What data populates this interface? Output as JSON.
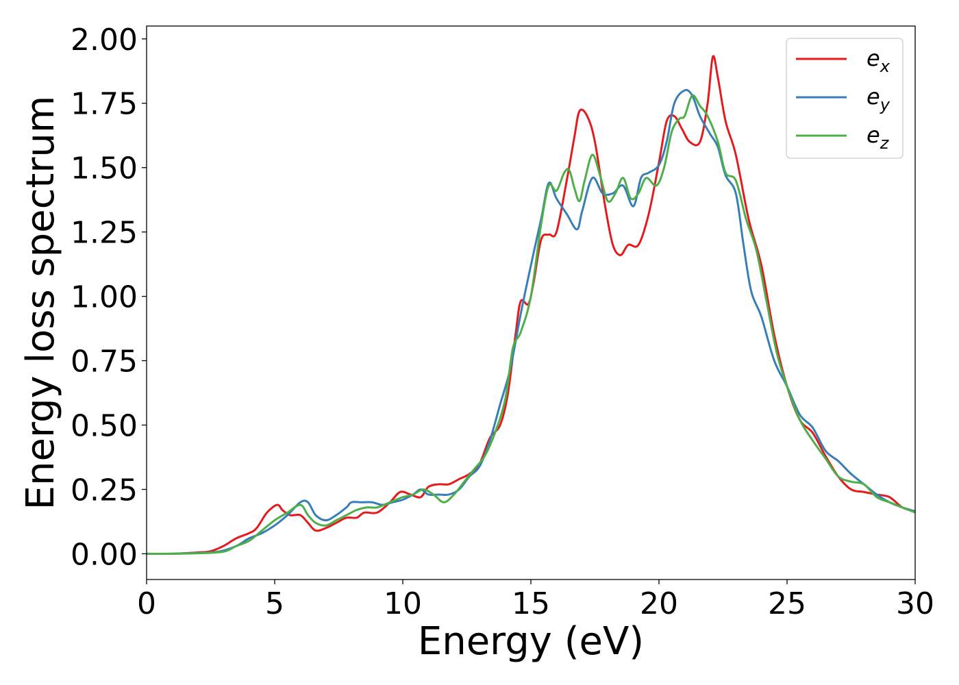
{
  "chart_data": {
    "type": "line",
    "xlabel": "Energy (eV)",
    "ylabel": "Energy loss spectrum",
    "xlim": [
      0,
      30
    ],
    "ylim": [
      -0.1,
      2.05
    ],
    "xticks": [
      0,
      5,
      10,
      15,
      20,
      25,
      30
    ],
    "yticks": [
      0.0,
      0.25,
      0.5,
      0.75,
      1.0,
      1.25,
      1.5,
      1.75,
      2.0
    ],
    "ytick_labels": [
      "0.00",
      "0.25",
      "0.50",
      "0.75",
      "1.00",
      "1.25",
      "1.50",
      "1.75",
      "2.00"
    ],
    "grid": false,
    "legend_position": "top-right",
    "series": [
      {
        "name": "e_x",
        "base": "e",
        "sub": "x",
        "color": "#e41a1c",
        "points": [
          [
            0,
            0
          ],
          [
            1,
            0
          ],
          [
            2,
            0.005
          ],
          [
            2.5,
            0.01
          ],
          [
            3,
            0.03
          ],
          [
            3.5,
            0.06
          ],
          [
            4,
            0.08
          ],
          [
            4.3,
            0.1
          ],
          [
            4.7,
            0.16
          ],
          [
            5.1,
            0.19
          ],
          [
            5.3,
            0.17
          ],
          [
            5.6,
            0.15
          ],
          [
            6,
            0.15
          ],
          [
            6.3,
            0.12
          ],
          [
            6.6,
            0.09
          ],
          [
            7,
            0.1
          ],
          [
            7.4,
            0.12
          ],
          [
            7.8,
            0.14
          ],
          [
            8.2,
            0.14
          ],
          [
            8.5,
            0.16
          ],
          [
            9,
            0.16
          ],
          [
            9.5,
            0.2
          ],
          [
            9.9,
            0.24
          ],
          [
            10.3,
            0.23
          ],
          [
            10.7,
            0.22
          ],
          [
            11,
            0.26
          ],
          [
            11.4,
            0.27
          ],
          [
            11.8,
            0.27
          ],
          [
            12.2,
            0.29
          ],
          [
            12.6,
            0.31
          ],
          [
            13,
            0.35
          ],
          [
            13.4,
            0.45
          ],
          [
            13.8,
            0.5
          ],
          [
            14.1,
            0.62
          ],
          [
            14.4,
            0.85
          ],
          [
            14.6,
            0.98
          ],
          [
            14.9,
            0.97
          ],
          [
            15.1,
            1.05
          ],
          [
            15.4,
            1.22
          ],
          [
            15.7,
            1.24
          ],
          [
            16,
            1.25
          ],
          [
            16.4,
            1.45
          ],
          [
            16.7,
            1.62
          ],
          [
            16.9,
            1.72
          ],
          [
            17.2,
            1.7
          ],
          [
            17.5,
            1.6
          ],
          [
            17.9,
            1.35
          ],
          [
            18.2,
            1.2
          ],
          [
            18.5,
            1.16
          ],
          [
            18.8,
            1.2
          ],
          [
            19.2,
            1.2
          ],
          [
            19.6,
            1.32
          ],
          [
            20,
            1.52
          ],
          [
            20.3,
            1.68
          ],
          [
            20.6,
            1.7
          ],
          [
            20.9,
            1.65
          ],
          [
            21.2,
            1.6
          ],
          [
            21.6,
            1.6
          ],
          [
            21.9,
            1.75
          ],
          [
            22.1,
            1.93
          ],
          [
            22.3,
            1.85
          ],
          [
            22.6,
            1.68
          ],
          [
            23,
            1.55
          ],
          [
            23.5,
            1.3
          ],
          [
            24,
            1.12
          ],
          [
            24.5,
            0.85
          ],
          [
            25,
            0.65
          ],
          [
            25.5,
            0.52
          ],
          [
            26,
            0.47
          ],
          [
            26.5,
            0.38
          ],
          [
            27,
            0.3
          ],
          [
            27.5,
            0.25
          ],
          [
            28,
            0.24
          ],
          [
            28.5,
            0.23
          ],
          [
            29,
            0.22
          ],
          [
            29.5,
            0.18
          ],
          [
            30,
            0.165
          ]
        ]
      },
      {
        "name": "e_y",
        "base": "e",
        "sub": "y",
        "color": "#377eb8",
        "points": [
          [
            0,
            0
          ],
          [
            1,
            0
          ],
          [
            2,
            0.003
          ],
          [
            2.8,
            0.008
          ],
          [
            3.5,
            0.03
          ],
          [
            4,
            0.06
          ],
          [
            4.5,
            0.08
          ],
          [
            5,
            0.11
          ],
          [
            5.5,
            0.15
          ],
          [
            6,
            0.2
          ],
          [
            6.3,
            0.2
          ],
          [
            6.6,
            0.15
          ],
          [
            7,
            0.13
          ],
          [
            7.4,
            0.15
          ],
          [
            7.8,
            0.18
          ],
          [
            8,
            0.2
          ],
          [
            8.4,
            0.2
          ],
          [
            8.8,
            0.2
          ],
          [
            9.2,
            0.19
          ],
          [
            9.6,
            0.2
          ],
          [
            10,
            0.21
          ],
          [
            10.4,
            0.23
          ],
          [
            10.7,
            0.25
          ],
          [
            11,
            0.23
          ],
          [
            11.4,
            0.23
          ],
          [
            11.8,
            0.23
          ],
          [
            12.2,
            0.25
          ],
          [
            12.6,
            0.3
          ],
          [
            13,
            0.34
          ],
          [
            13.4,
            0.44
          ],
          [
            13.8,
            0.58
          ],
          [
            14.2,
            0.72
          ],
          [
            14.6,
            0.93
          ],
          [
            15,
            1.12
          ],
          [
            15.4,
            1.3
          ],
          [
            15.7,
            1.44
          ],
          [
            16,
            1.38
          ],
          [
            16.4,
            1.32
          ],
          [
            16.8,
            1.26
          ],
          [
            17,
            1.33
          ],
          [
            17.4,
            1.46
          ],
          [
            17.8,
            1.4
          ],
          [
            18.2,
            1.4
          ],
          [
            18.6,
            1.43
          ],
          [
            19,
            1.35
          ],
          [
            19.3,
            1.46
          ],
          [
            19.6,
            1.48
          ],
          [
            20,
            1.51
          ],
          [
            20.3,
            1.6
          ],
          [
            20.6,
            1.75
          ],
          [
            21,
            1.8
          ],
          [
            21.3,
            1.78
          ],
          [
            21.6,
            1.7
          ],
          [
            22,
            1.63
          ],
          [
            22.3,
            1.58
          ],
          [
            22.6,
            1.47
          ],
          [
            23,
            1.4
          ],
          [
            23.3,
            1.2
          ],
          [
            23.6,
            1.02
          ],
          [
            24,
            0.92
          ],
          [
            24.5,
            0.75
          ],
          [
            25,
            0.65
          ],
          [
            25.5,
            0.54
          ],
          [
            26,
            0.49
          ],
          [
            26.5,
            0.4
          ],
          [
            27,
            0.36
          ],
          [
            27.5,
            0.31
          ],
          [
            28,
            0.27
          ],
          [
            28.5,
            0.23
          ],
          [
            29,
            0.2
          ],
          [
            29.5,
            0.18
          ],
          [
            30,
            0.165
          ]
        ]
      },
      {
        "name": "e_z",
        "base": "e",
        "sub": "z",
        "color": "#4daf4a",
        "points": [
          [
            0,
            0
          ],
          [
            1,
            0
          ],
          [
            2,
            0.002
          ],
          [
            3,
            0.008
          ],
          [
            3.5,
            0.03
          ],
          [
            4,
            0.05
          ],
          [
            4.5,
            0.09
          ],
          [
            5,
            0.13
          ],
          [
            5.5,
            0.16
          ],
          [
            6,
            0.19
          ],
          [
            6.3,
            0.15
          ],
          [
            6.6,
            0.12
          ],
          [
            7,
            0.11
          ],
          [
            7.4,
            0.13
          ],
          [
            7.8,
            0.15
          ],
          [
            8.2,
            0.17
          ],
          [
            8.6,
            0.18
          ],
          [
            9,
            0.18
          ],
          [
            9.5,
            0.2
          ],
          [
            10,
            0.22
          ],
          [
            10.4,
            0.23
          ],
          [
            10.8,
            0.25
          ],
          [
            11.2,
            0.23
          ],
          [
            11.6,
            0.2
          ],
          [
            12,
            0.23
          ],
          [
            12.4,
            0.28
          ],
          [
            12.8,
            0.33
          ],
          [
            13.2,
            0.38
          ],
          [
            13.6,
            0.47
          ],
          [
            14,
            0.6
          ],
          [
            14.3,
            0.8
          ],
          [
            14.6,
            0.86
          ],
          [
            15,
            1
          ],
          [
            15.4,
            1.28
          ],
          [
            15.7,
            1.43
          ],
          [
            16,
            1.41
          ],
          [
            16.3,
            1.48
          ],
          [
            16.5,
            1.49
          ],
          [
            16.7,
            1.42
          ],
          [
            16.9,
            1.37
          ],
          [
            17.1,
            1.45
          ],
          [
            17.4,
            1.55
          ],
          [
            17.7,
            1.47
          ],
          [
            18,
            1.37
          ],
          [
            18.3,
            1.4
          ],
          [
            18.6,
            1.46
          ],
          [
            18.9,
            1.38
          ],
          [
            19.2,
            1.4
          ],
          [
            19.5,
            1.46
          ],
          [
            19.9,
            1.43
          ],
          [
            20.2,
            1.5
          ],
          [
            20.5,
            1.64
          ],
          [
            20.8,
            1.69
          ],
          [
            21,
            1.7
          ],
          [
            21.3,
            1.78
          ],
          [
            21.6,
            1.74
          ],
          [
            21.9,
            1.7
          ],
          [
            22.3,
            1.6
          ],
          [
            22.6,
            1.48
          ],
          [
            23,
            1.45
          ],
          [
            23.4,
            1.3
          ],
          [
            23.8,
            1.18
          ],
          [
            24.2,
            0.98
          ],
          [
            24.6,
            0.78
          ],
          [
            25,
            0.65
          ],
          [
            25.5,
            0.52
          ],
          [
            26,
            0.44
          ],
          [
            26.5,
            0.37
          ],
          [
            27,
            0.3
          ],
          [
            27.5,
            0.28
          ],
          [
            28,
            0.27
          ],
          [
            28.5,
            0.22
          ],
          [
            29,
            0.2
          ],
          [
            29.5,
            0.18
          ],
          [
            30,
            0.16
          ]
        ]
      }
    ]
  }
}
